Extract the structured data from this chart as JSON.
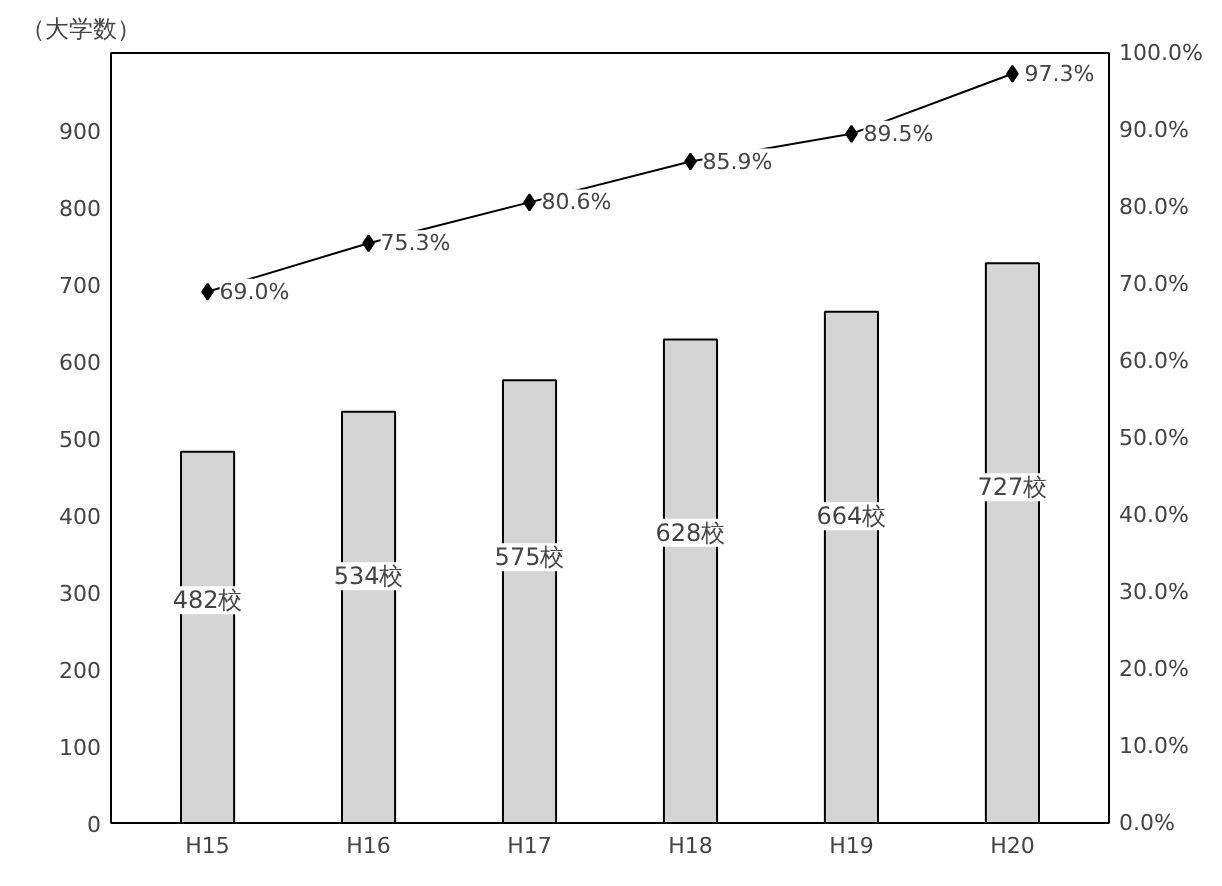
{
  "chart_data": {
    "type": "bar",
    "ylabel": "（大学数）",
    "categories": [
      "H15",
      "H16",
      "H17",
      "H18",
      "H19",
      "H20"
    ],
    "series": [
      {
        "color": "#d4d4d4",
        "values": [
          482,
          534,
          575,
          628,
          664,
          727
        ],
        "value_labels": [
          "482校",
          "534校",
          "575校",
          "628校",
          "664校",
          "727校"
        ]
      },
      {
        "type": "line",
        "axis": "y2",
        "color": "#000000",
        "marker": "diamond",
        "values": [
          69.0,
          75.3,
          80.6,
          85.9,
          89.5,
          97.3
        ],
        "value_labels": [
          "69.0%",
          "75.3%",
          "80.6%",
          "85.9%",
          "89.5%",
          "97.3%"
        ]
      }
    ],
    "ylim": [
      0,
      1000
    ],
    "yticks": [
      0,
      100,
      200,
      300,
      400,
      500,
      600,
      700,
      800,
      900
    ],
    "y2lim": [
      0,
      100
    ],
    "y2ticks": [
      {
        "value": 0,
        "label": "0.0%"
      },
      {
        "value": 10,
        "label": "10.0%"
      },
      {
        "value": 20,
        "label": "20.0%"
      },
      {
        "value": 30,
        "label": "30.0%"
      },
      {
        "value": 40,
        "label": "40.0%"
      },
      {
        "value": 50,
        "label": "50.0%"
      },
      {
        "value": 60,
        "label": "60.0%"
      },
      {
        "value": 70,
        "label": "70.0%"
      },
      {
        "value": 80,
        "label": "80.0%"
      },
      {
        "value": 90,
        "label": "90.0%"
      },
      {
        "value": 100,
        "label": "100.0%"
      }
    ],
    "grid": false
  }
}
